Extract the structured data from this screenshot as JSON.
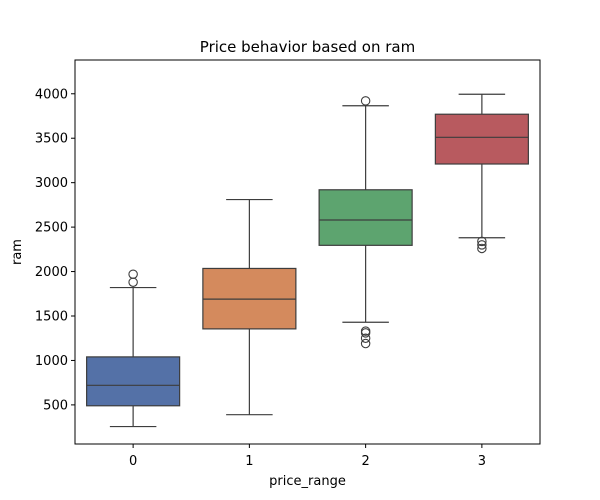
{
  "chart_data": {
    "type": "box",
    "title": "Price behavior based on ram",
    "xlabel": "price_range",
    "ylabel": "ram",
    "categories": [
      "0",
      "1",
      "2",
      "3"
    ],
    "ylim": [
      60,
      4380
    ],
    "yticks": [
      500,
      1000,
      1500,
      2000,
      2500,
      3000,
      3500,
      4000
    ],
    "ytick_labels": [
      "500",
      "1000",
      "1500",
      "2000",
      "2500",
      "3000",
      "3500",
      "4000"
    ],
    "grid": false,
    "legend": "none",
    "boxes": [
      {
        "category": "0",
        "whisker_low": 256,
        "q1": 490,
        "median": 720,
        "q3": 1040,
        "whisker_high": 1820,
        "outliers": [
          1880,
          1970
        ],
        "color": "#5471a7"
      },
      {
        "category": "1",
        "whisker_low": 390,
        "q1": 1355,
        "median": 1690,
        "q3": 2035,
        "whisker_high": 2810,
        "outliers": [],
        "color": "#d48a5d"
      },
      {
        "category": "2",
        "whisker_low": 1430,
        "q1": 2295,
        "median": 2580,
        "q3": 2920,
        "whisker_high": 3865,
        "outliers": [
          3920,
          1330,
          1310,
          1250,
          1190
        ],
        "color": "#5da46f"
      },
      {
        "category": "3",
        "whisker_low": 2380,
        "q1": 3210,
        "median": 3510,
        "q3": 3770,
        "whisker_high": 3995,
        "outliers": [
          2340,
          2300,
          2260
        ],
        "color": "#b85a5f"
      }
    ]
  }
}
